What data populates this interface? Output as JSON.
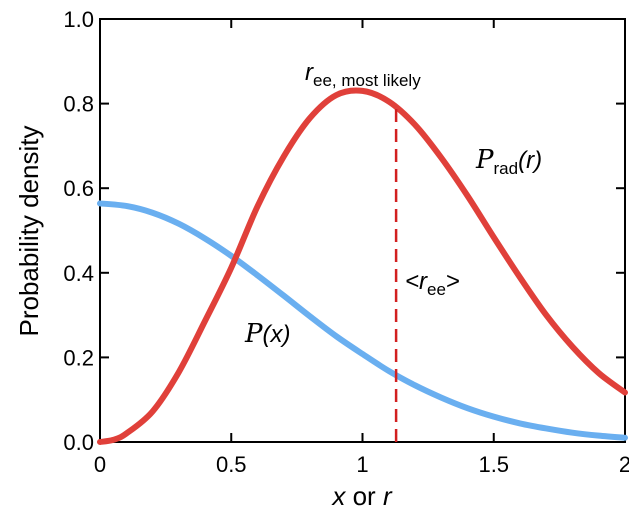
{
  "chart_data": {
    "type": "line",
    "xlabel": {
      "var1": "x",
      "mid": " or ",
      "var2": "r"
    },
    "ylabel": "Probability density",
    "xlim": [
      0,
      2
    ],
    "ylim": [
      0,
      1.0
    ],
    "xticks": [
      0,
      0.5,
      1,
      1.5,
      2
    ],
    "xtick_labels": [
      "0",
      "0.5",
      "1",
      "1.5",
      "2"
    ],
    "yticks": [
      0.0,
      0.2,
      0.4,
      0.6,
      0.8,
      1.0
    ],
    "ytick_labels": [
      "0.0",
      "0.2",
      "0.4",
      "0.6",
      "0.8",
      "1.0"
    ],
    "grid": false,
    "series": [
      {
        "color": "#6aaff0",
        "x": [
          0,
          0.1,
          0.2,
          0.3,
          0.4,
          0.5,
          0.6,
          0.7,
          0.8,
          0.9,
          1.0,
          1.1,
          1.2,
          1.3,
          1.4,
          1.5,
          1.6,
          1.7,
          1.8,
          1.9,
          2.0
        ],
        "y": [
          0.564,
          0.558,
          0.542,
          0.516,
          0.481,
          0.44,
          0.394,
          0.346,
          0.297,
          0.25,
          0.208,
          0.168,
          0.134,
          0.105,
          0.08,
          0.06,
          0.044,
          0.032,
          0.022,
          0.015,
          0.01
        ]
      },
      {
        "color": "#e0403a",
        "x": [
          0,
          0.05,
          0.1,
          0.2,
          0.3,
          0.4,
          0.5,
          0.6,
          0.7,
          0.8,
          0.9,
          1.0,
          1.1,
          1.2,
          1.3,
          1.4,
          1.5,
          1.6,
          1.7,
          1.8,
          1.9,
          2.0
        ],
        "y": [
          0.0,
          0.005,
          0.02,
          0.072,
          0.165,
          0.286,
          0.412,
          0.557,
          0.675,
          0.766,
          0.82,
          0.83,
          0.805,
          0.75,
          0.672,
          0.582,
          0.484,
          0.389,
          0.3,
          0.225,
          0.163,
          0.117
        ]
      }
    ],
    "reference_line": {
      "x": 1.128,
      "y_from": 0,
      "y_to": 0.8,
      "color": "#d22020",
      "style": "dashed"
    },
    "annotations": {
      "peak_main": "r",
      "peak_sub": "ee, most likely",
      "rad_script": "P",
      "rad_sub": "rad",
      "rad_arg": "(r)",
      "px_script": "P",
      "px_arg": "(x)",
      "mean_open": "<r",
      "mean_sub": "ee",
      "mean_close": ">"
    }
  }
}
